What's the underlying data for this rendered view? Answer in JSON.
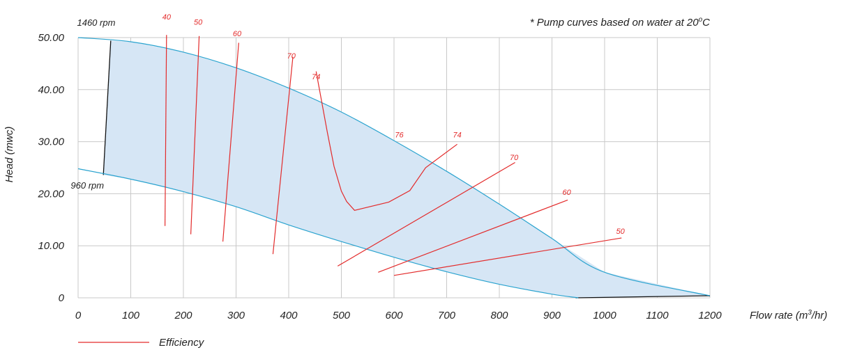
{
  "chart_data": {
    "type": "line",
    "xlabel_parts": [
      "Flow rate (m",
      "3",
      "/hr)"
    ],
    "ylabel": "Head (mwc)",
    "note_parts": [
      "* Pump curves based on water at 20",
      "o",
      "C"
    ],
    "x_ticks": [
      0,
      100,
      200,
      300,
      400,
      500,
      600,
      700,
      800,
      900,
      1000,
      1100,
      1200
    ],
    "y_ticks": [
      0,
      10,
      20,
      30,
      40,
      50
    ],
    "y_tick_labels": [
      "0",
      "10.00",
      "20.00",
      "30.00",
      "40.00",
      "50.00"
    ],
    "xlim": [
      0,
      1200
    ],
    "ylim": [
      0,
      50
    ],
    "grid": true,
    "colors": {
      "pump_curve": "#2aa3cf",
      "efficiency": "#e32b2b",
      "fill": "#d6e6f5",
      "grid": "#c8c8c8",
      "boundary": "#111111"
    },
    "pump_curves": [
      {
        "name": "1460 rpm",
        "points": [
          [
            0,
            50
          ],
          [
            100,
            49.2
          ],
          [
            200,
            47.2
          ],
          [
            300,
            44.2
          ],
          [
            400,
            40.3
          ],
          [
            500,
            35.7
          ],
          [
            600,
            30.2
          ],
          [
            700,
            24.3
          ],
          [
            800,
            18.0
          ],
          [
            900,
            11.4
          ],
          [
            1000,
            4.9
          ],
          [
            1200,
            0.4
          ]
        ]
      },
      {
        "name": "960 rpm",
        "points": [
          [
            0,
            24.8
          ],
          [
            100,
            22.8
          ],
          [
            200,
            20.4
          ],
          [
            300,
            17.5
          ],
          [
            400,
            14.0
          ],
          [
            500,
            10.8
          ],
          [
            600,
            7.8
          ],
          [
            700,
            5.0
          ],
          [
            800,
            2.6
          ],
          [
            900,
            0.7
          ],
          [
            950,
            0
          ]
        ]
      }
    ],
    "speed_boundaries": [
      {
        "points": [
          [
            62,
            49.4
          ],
          [
            48,
            23.6
          ]
        ]
      },
      {
        "points": [
          [
            945,
            0
          ],
          [
            1200,
            0.4
          ]
        ]
      }
    ],
    "efficiency_curves": [
      {
        "label": "40",
        "label_at": [
          168,
          53.5
        ],
        "points": [
          [
            168,
            50.5
          ],
          [
            165,
            13.8
          ]
        ]
      },
      {
        "label": "50",
        "label_at": [
          228,
          52.5
        ],
        "points": [
          [
            230,
            50.3
          ],
          [
            214,
            12.2
          ]
        ]
      },
      {
        "label": "60",
        "label_at": [
          302,
          50.3
        ],
        "points": [
          [
            305,
            49.0
          ],
          [
            275,
            10.8
          ]
        ]
      },
      {
        "label": "70",
        "label_at": [
          405,
          46.0
        ],
        "points": [
          [
            408,
            46.3
          ],
          [
            370,
            8.4
          ]
        ]
      },
      {
        "label": "74",
        "label_at": [
          452,
          42.0
        ],
        "points": [
          [
            452,
            43.5
          ],
          [
            473,
            32.0
          ],
          [
            486,
            25.3
          ],
          [
            500,
            20.5
          ],
          [
            510,
            18.5
          ],
          [
            525,
            16.8
          ],
          [
            590,
            18.4
          ],
          [
            630,
            20.6
          ],
          [
            660,
            25.0
          ],
          [
            720,
            29.5
          ]
        ]
      },
      {
        "label": "76",
        "label_at": [
          610,
          30.8
        ],
        "points": []
      },
      {
        "label": "74",
        "label_at": [
          720,
          30.8
        ],
        "points": []
      },
      {
        "label": "70",
        "label_at": [
          828,
          26.5
        ],
        "points": [
          [
            830,
            26.0
          ],
          [
            493,
            6.1
          ]
        ]
      },
      {
        "label": "60",
        "label_at": [
          928,
          19.8
        ],
        "points": [
          [
            930,
            18.8
          ],
          [
            570,
            4.9
          ]
        ]
      },
      {
        "label": "50",
        "label_at": [
          1030,
          12.3
        ],
        "points": [
          [
            1032,
            11.5
          ],
          [
            600,
            4.3
          ]
        ]
      }
    ],
    "rpm_labels": [
      {
        "label": "1460 rpm",
        "at": [
          -2,
          52.3
        ]
      },
      {
        "label": "960 rpm",
        "at": [
          -14,
          21.0
        ]
      }
    ],
    "legend": {
      "label": "Efficiency",
      "placement": "bottom-left"
    }
  }
}
